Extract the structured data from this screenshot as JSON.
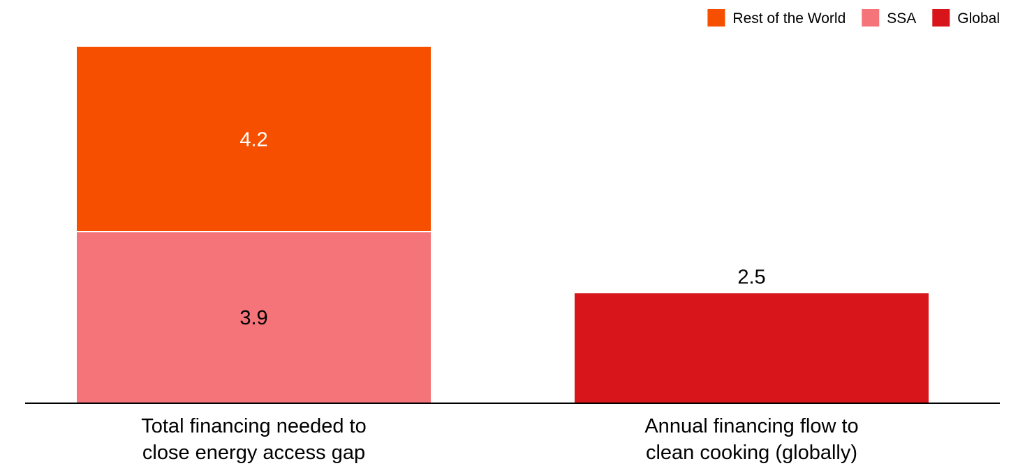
{
  "chart_data": {
    "type": "bar",
    "stacked": true,
    "categories": [
      [
        "Total financing needed to",
        "close energy access gap"
      ],
      [
        "Annual financing flow to",
        "clean cooking (globally)"
      ]
    ],
    "series": [
      {
        "name": "SSA",
        "color": "#F47479",
        "values": [
          3.9,
          null
        ]
      },
      {
        "name": "Rest of the World",
        "color": "#F74F00",
        "values": [
          4.2,
          null
        ]
      },
      {
        "name": "Global",
        "color": "#D7151B",
        "values": [
          null,
          2.5
        ]
      }
    ],
    "legend": {
      "position": "top-right",
      "order": [
        "Rest of the World",
        "SSA",
        "Global"
      ]
    },
    "ylim": [
      0,
      8.1
    ],
    "grid": false,
    "value_labels": [
      {
        "category": 0,
        "series": "SSA",
        "text": "3.9",
        "placement": "inside",
        "text_color": "#000000"
      },
      {
        "category": 0,
        "series": "Rest of the World",
        "text": "4.2",
        "placement": "inside",
        "text_color": "#ffffff"
      },
      {
        "category": 1,
        "series": "Global",
        "text": "2.5",
        "placement": "above",
        "text_color": "#000000"
      }
    ]
  }
}
